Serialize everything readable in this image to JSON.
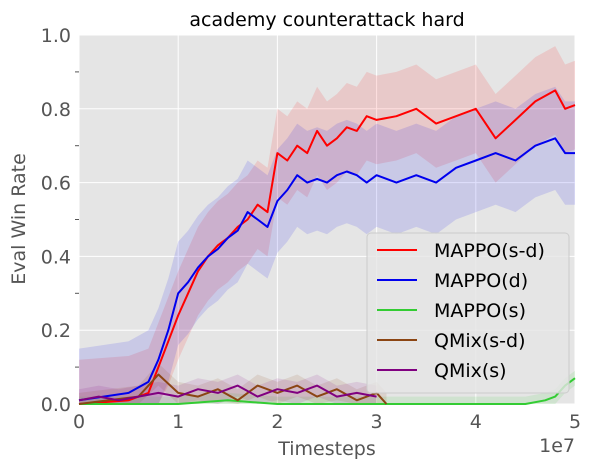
{
  "chart_data": {
    "type": "line",
    "title": "academy counterattack hard",
    "xlabel": "Timesteps",
    "ylabel": "Eval Win Rate",
    "x_scale_label": "1e7",
    "xlim": [
      0,
      5
    ],
    "ylim": [
      0,
      1
    ],
    "x_ticks": [
      "0",
      "1",
      "2",
      "3",
      "4",
      "5"
    ],
    "y_ticks": [
      "0.0",
      "0.2",
      "0.4",
      "0.6",
      "0.8",
      "1.0"
    ],
    "grid": true,
    "legend_position": "lower-right",
    "series": [
      {
        "name": "MAPPO(s-d)",
        "color": "#ff0000",
        "x": [
          0,
          0.5,
          0.7,
          0.8,
          0.9,
          1.0,
          1.1,
          1.2,
          1.3,
          1.4,
          1.5,
          1.6,
          1.7,
          1.8,
          1.9,
          2.0,
          2.1,
          2.2,
          2.3,
          2.4,
          2.5,
          2.6,
          2.7,
          2.8,
          2.9,
          3.0,
          3.2,
          3.4,
          3.6,
          3.8,
          4.0,
          4.2,
          4.4,
          4.6,
          4.8,
          4.9,
          5.0
        ],
        "y": [
          0.0,
          0.01,
          0.03,
          0.1,
          0.17,
          0.24,
          0.3,
          0.36,
          0.4,
          0.43,
          0.45,
          0.48,
          0.5,
          0.54,
          0.52,
          0.68,
          0.66,
          0.7,
          0.68,
          0.74,
          0.7,
          0.72,
          0.75,
          0.74,
          0.78,
          0.77,
          0.78,
          0.8,
          0.76,
          0.78,
          0.8,
          0.72,
          0.77,
          0.82,
          0.85,
          0.8,
          0.81
        ]
      },
      {
        "name": "MAPPO(d)",
        "color": "#0000ee",
        "x": [
          0,
          0.5,
          0.7,
          0.8,
          0.9,
          1.0,
          1.1,
          1.2,
          1.3,
          1.4,
          1.5,
          1.6,
          1.7,
          1.8,
          1.9,
          2.0,
          2.1,
          2.2,
          2.3,
          2.4,
          2.5,
          2.6,
          2.7,
          2.8,
          2.9,
          3.0,
          3.2,
          3.4,
          3.6,
          3.8,
          4.0,
          4.2,
          4.4,
          4.6,
          4.8,
          4.9,
          5.0
        ],
        "y": [
          0.01,
          0.03,
          0.06,
          0.12,
          0.2,
          0.3,
          0.33,
          0.37,
          0.4,
          0.42,
          0.45,
          0.47,
          0.52,
          0.5,
          0.48,
          0.55,
          0.58,
          0.62,
          0.6,
          0.61,
          0.6,
          0.62,
          0.63,
          0.62,
          0.6,
          0.62,
          0.6,
          0.62,
          0.6,
          0.64,
          0.66,
          0.68,
          0.66,
          0.7,
          0.72,
          0.68,
          0.68
        ]
      },
      {
        "name": "MAPPO(s)",
        "color": "#33cc33",
        "x": [
          0,
          0.5,
          1.0,
          1.5,
          2.0,
          2.5,
          3.0,
          3.5,
          4.0,
          4.5,
          4.7,
          4.8,
          4.9,
          5.0
        ],
        "y": [
          0.0,
          0.0,
          0.0,
          0.01,
          0.0,
          0.0,
          0.0,
          0.0,
          0.0,
          0.0,
          0.01,
          0.02,
          0.05,
          0.07
        ]
      },
      {
        "name": "QMix(s-d)",
        "color": "#8b4513",
        "x": [
          0,
          0.3,
          0.6,
          0.8,
          1.0,
          1.2,
          1.4,
          1.6,
          1.8,
          2.0,
          2.2,
          2.4,
          2.6,
          2.8,
          3.0,
          3.1
        ],
        "y": [
          0.0,
          0.01,
          0.02,
          0.08,
          0.03,
          0.02,
          0.04,
          0.01,
          0.05,
          0.03,
          0.05,
          0.02,
          0.04,
          0.01,
          0.03,
          0.0
        ]
      },
      {
        "name": "QMix(s)",
        "color": "#800080",
        "x": [
          0,
          0.2,
          0.4,
          0.6,
          0.8,
          1.0,
          1.2,
          1.4,
          1.6,
          1.8,
          2.0,
          2.2,
          2.4,
          2.6,
          2.8,
          3.0
        ],
        "y": [
          0.01,
          0.02,
          0.01,
          0.02,
          0.03,
          0.02,
          0.04,
          0.03,
          0.05,
          0.02,
          0.04,
          0.03,
          0.05,
          0.02,
          0.03,
          0.02
        ]
      }
    ]
  }
}
